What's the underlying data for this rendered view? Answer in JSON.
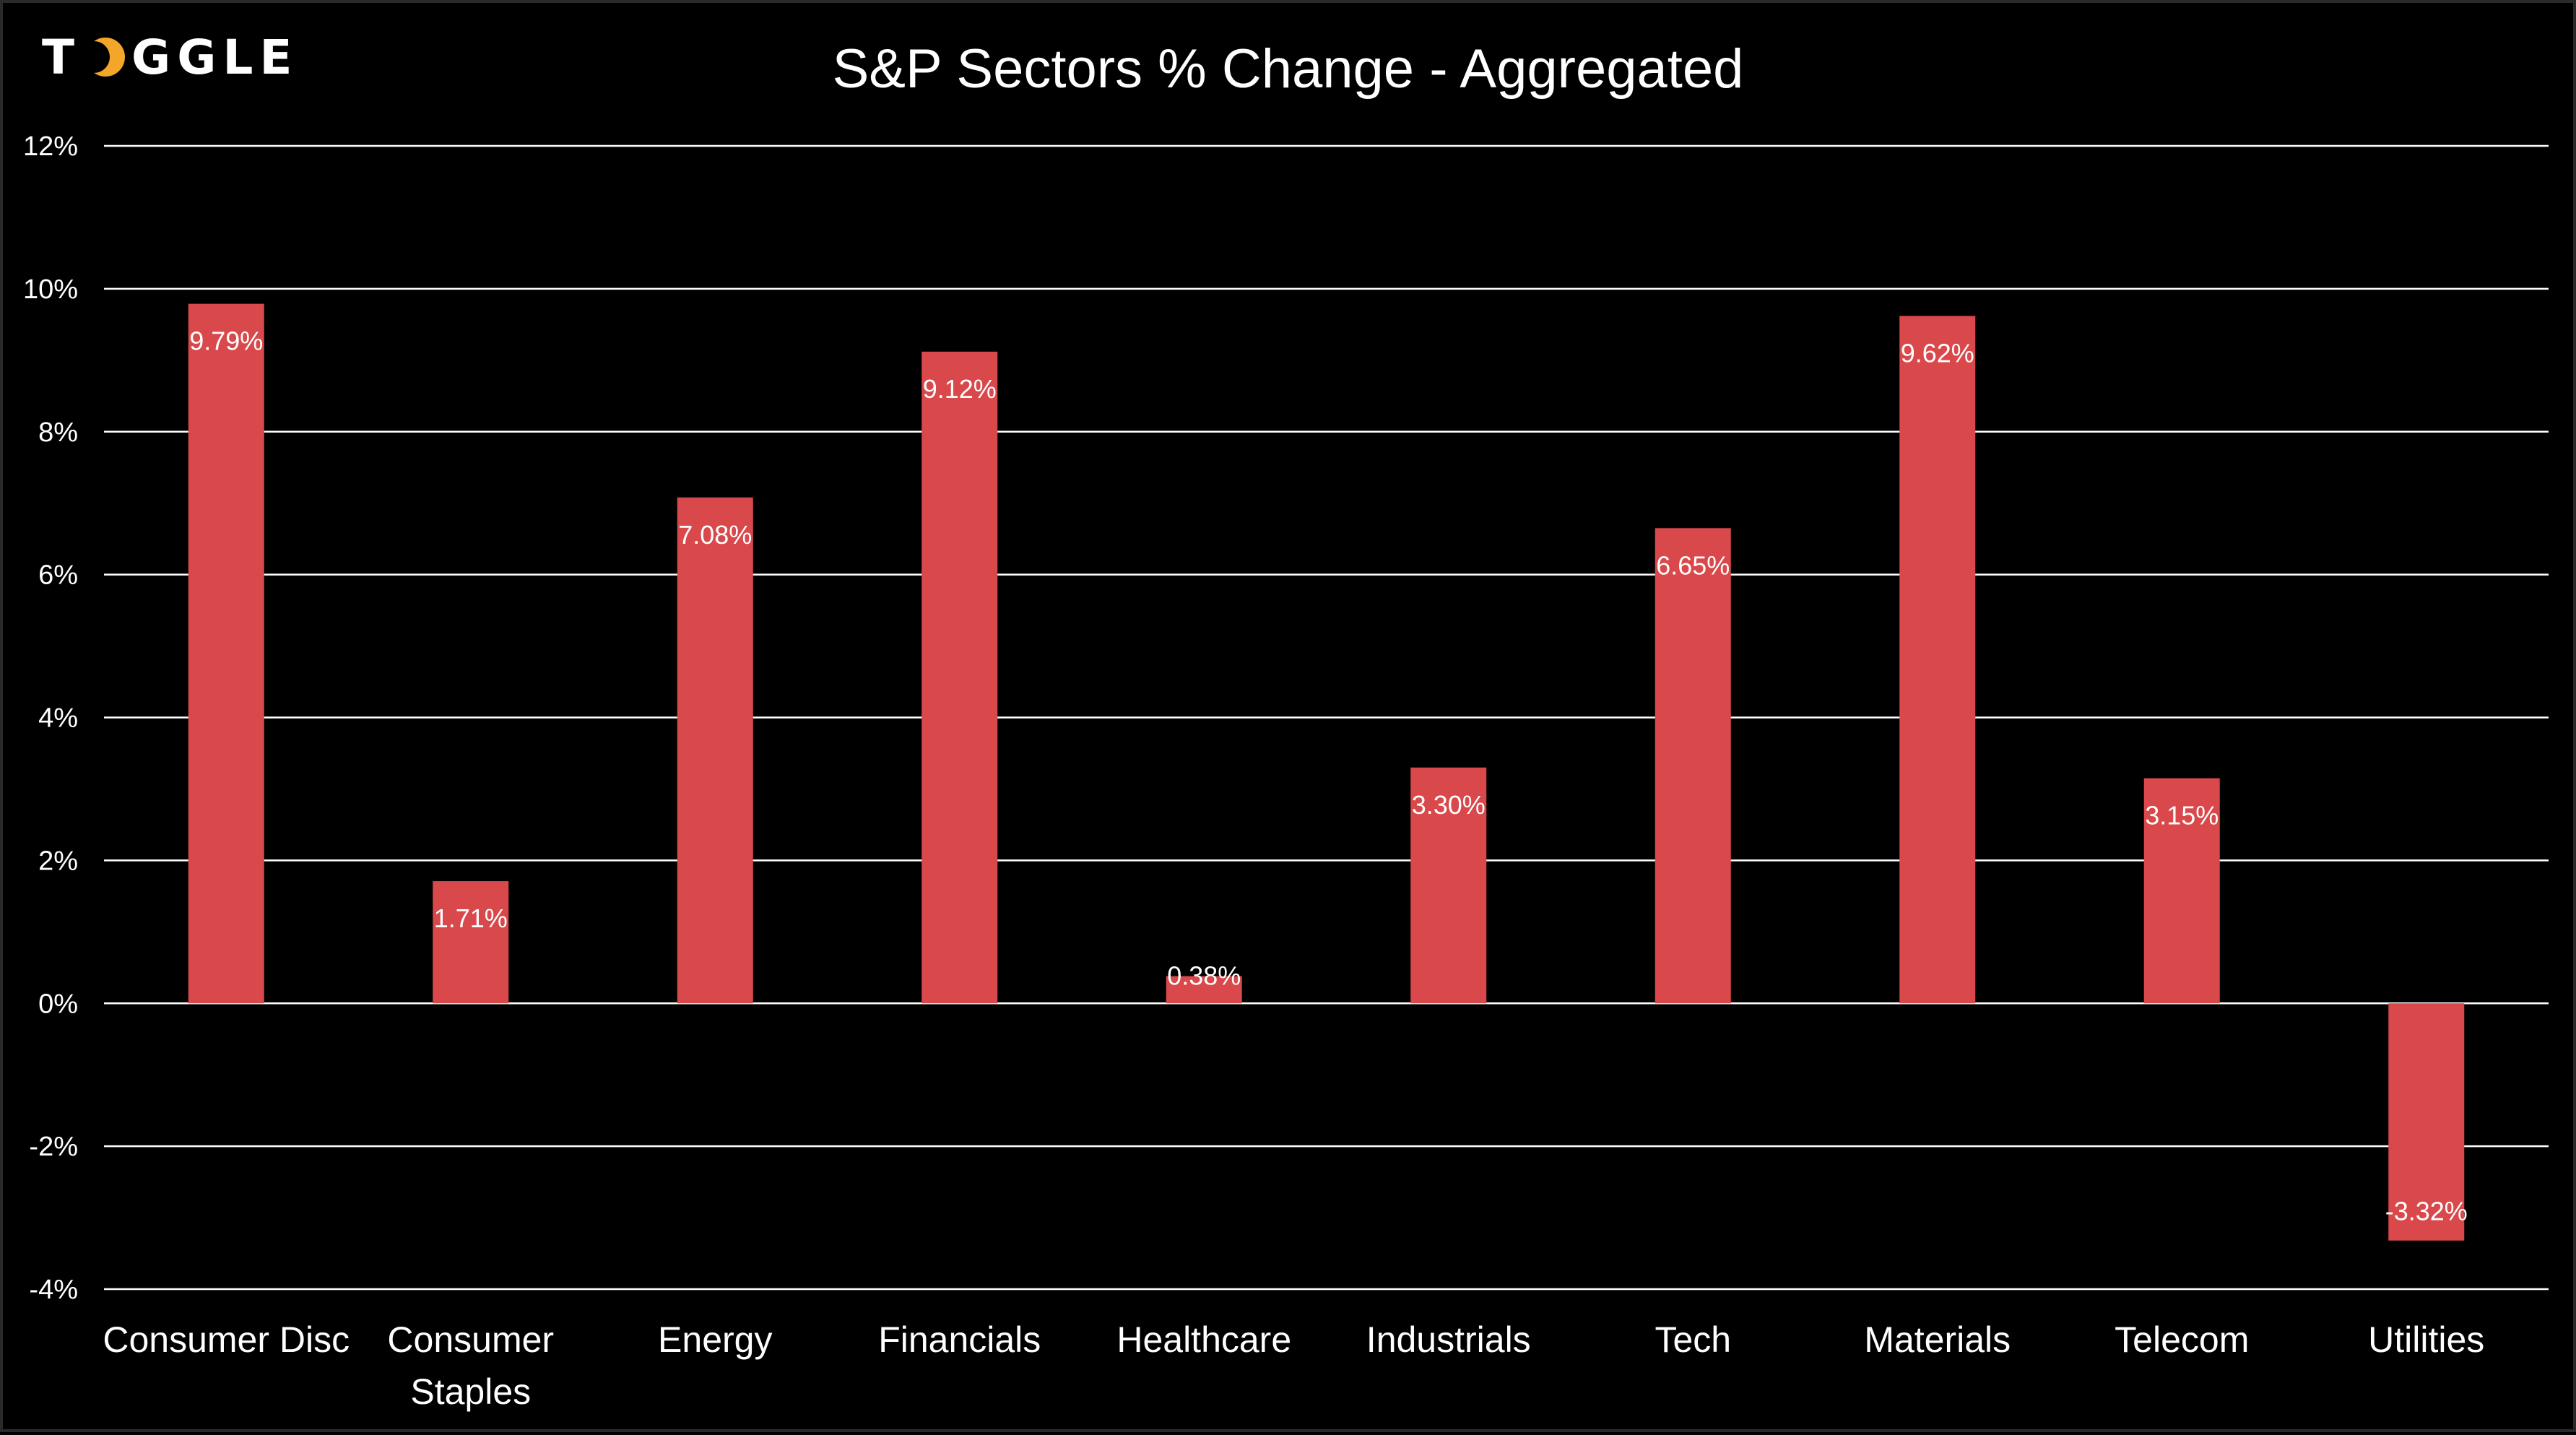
{
  "brand": {
    "logo_text": "TOGGLE",
    "logo_icon": "crescent-moon-icon",
    "accent_color": "#f4a62a"
  },
  "chart_data": {
    "type": "bar",
    "title": "S&P Sectors % Change - Aggregated",
    "xlabel": "",
    "ylabel": "",
    "categories": [
      "Consumer Disc",
      "Consumer Staples",
      "Energy",
      "Financials",
      "Healthcare",
      "Industrials",
      "Tech",
      "Materials",
      "Telecom",
      "Utilities"
    ],
    "values": [
      9.79,
      1.71,
      7.08,
      9.12,
      0.38,
      3.3,
      6.65,
      9.62,
      3.15,
      -3.32
    ],
    "data_labels": [
      "9.79%",
      "1.71%",
      "7.08%",
      "9.12%",
      "0.38%",
      "3.30%",
      "6.65%",
      "9.62%",
      "3.15%",
      "-3.32%"
    ],
    "ylim": [
      -4,
      12
    ],
    "yticks": [
      -4,
      -2,
      0,
      2,
      4,
      6,
      8,
      10,
      12
    ],
    "ytick_labels": [
      "-4%",
      "-2%",
      "0%",
      "2%",
      "4%",
      "6%",
      "8%",
      "10%",
      "12%"
    ],
    "grid": true,
    "legend": "none",
    "bar_color": "#d9484b",
    "background_color": "#000000",
    "text_color": "#ffffff",
    "grid_color": "#ffffff"
  }
}
